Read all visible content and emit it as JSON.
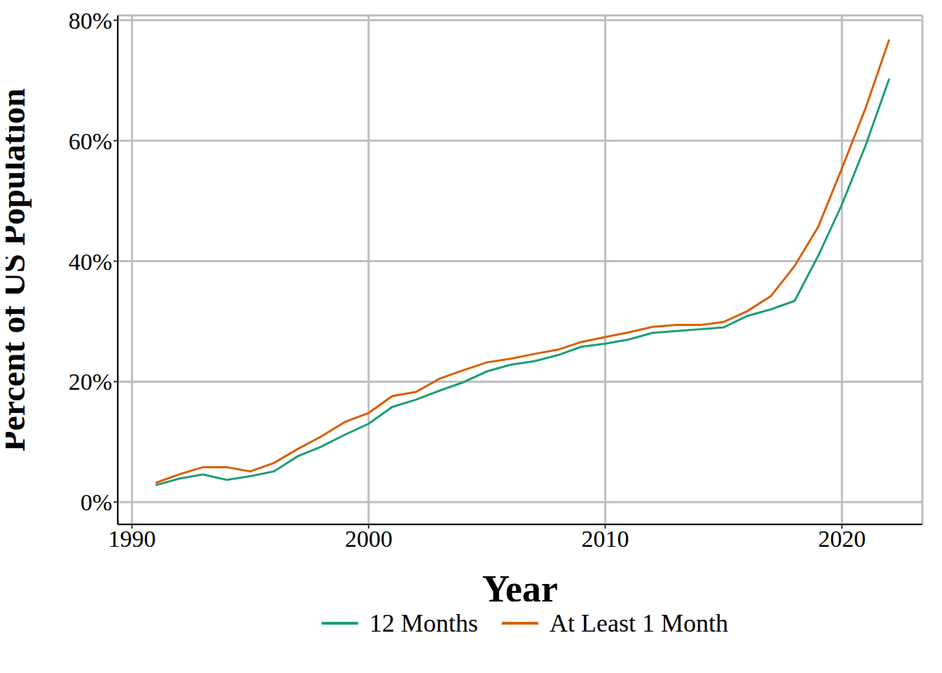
{
  "chart_data": {
    "type": "line",
    "x_label": "Year",
    "y_label": "Percent of US Population",
    "x": [
      1991,
      1992,
      1993,
      1994,
      1995,
      1996,
      1997,
      1998,
      1999,
      2000,
      2001,
      2002,
      2003,
      2004,
      2005,
      2006,
      2007,
      2008,
      2009,
      2010,
      2011,
      2012,
      2013,
      2014,
      2015,
      2016,
      2017,
      2018,
      2019,
      2020,
      2021,
      2022
    ],
    "series": [
      {
        "name": "12 Months",
        "color": "#1b9e77",
        "values": [
          2.8,
          3.9,
          4.6,
          3.7,
          4.3,
          5.1,
          7.6,
          9.2,
          11.2,
          13.0,
          15.8,
          17.0,
          18.5,
          19.9,
          21.7,
          22.8,
          23.4,
          24.4,
          25.8,
          26.3,
          27.0,
          28.1,
          28.4,
          28.7,
          29.0,
          30.9,
          32.0,
          33.4,
          40.9,
          49.4,
          59.2,
          70.3
        ]
      },
      {
        "name": "At Least 1 Month",
        "color": "#d95f02",
        "values": [
          3.2,
          4.6,
          5.8,
          5.8,
          5.1,
          6.5,
          8.8,
          10.9,
          13.3,
          14.8,
          17.6,
          18.3,
          20.5,
          21.9,
          23.2,
          23.8,
          24.6,
          25.3,
          26.6,
          27.4,
          28.2,
          29.1,
          29.4,
          29.4,
          29.9,
          31.7,
          34.2,
          39.2,
          45.7,
          55.4,
          65.4,
          76.8
        ]
      }
    ],
    "xlim": [
      1989.4,
      2023.4
    ],
    "xticks": [
      1990,
      2000,
      2010,
      2020
    ],
    "ylim": [
      -3.7,
      80.8
    ],
    "yticks": [
      {
        "value": 0,
        "label": "0%"
      },
      {
        "value": 20,
        "label": "20%"
      },
      {
        "value": 40,
        "label": "40%"
      },
      {
        "value": 60,
        "label": "60%"
      },
      {
        "value": 80,
        "label": "80%"
      }
    ],
    "grid": true,
    "legend": "bottom"
  }
}
